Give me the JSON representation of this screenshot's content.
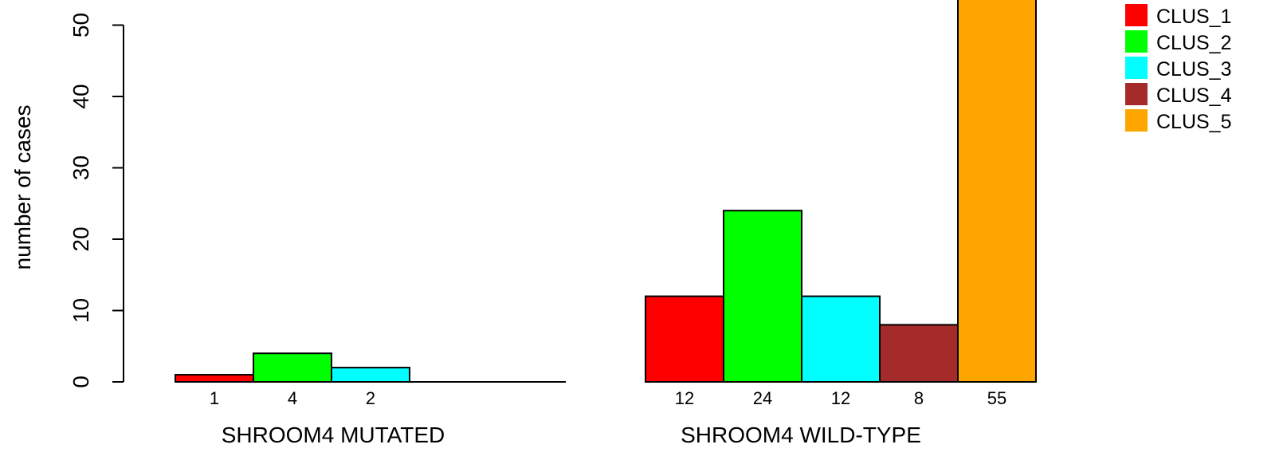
{
  "chart_data": {
    "type": "bar",
    "ylabel": "number of cases",
    "ylim": [
      0,
      55
    ],
    "yticks": [
      0,
      10,
      20,
      30,
      40,
      50
    ],
    "groups": [
      {
        "label": "SHROOM4 MUTATED",
        "values": [
          1,
          4,
          2,
          0,
          0
        ],
        "value_labels": [
          "1",
          "4",
          "2",
          "",
          ""
        ]
      },
      {
        "label": "SHROOM4 WILD-TYPE",
        "values": [
          12,
          24,
          12,
          8,
          55
        ],
        "value_labels": [
          "12",
          "24",
          "12",
          "8",
          "55"
        ]
      }
    ],
    "series": [
      {
        "name": "CLUS_1",
        "color": "#ff0000"
      },
      {
        "name": "CLUS_2",
        "color": "#00ff00"
      },
      {
        "name": "CLUS_3",
        "color": "#00ffff"
      },
      {
        "name": "CLUS_4",
        "color": "#a52a2a"
      },
      {
        "name": "CLUS_5",
        "color": "#ffa500"
      }
    ],
    "legend_position": "top-right"
  }
}
